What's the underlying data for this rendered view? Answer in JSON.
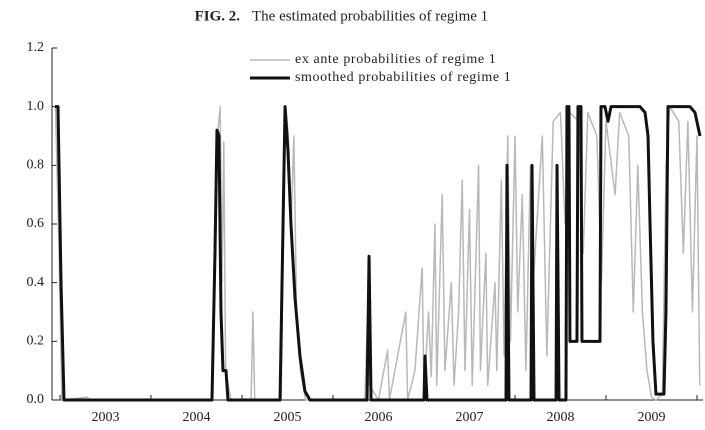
{
  "chart_data": {
    "type": "line",
    "title_label": "FIG. 2.",
    "title": "The estimated probabilities of regime 1",
    "xlim": [
      2002.912,
      2010.066
    ],
    "xticks": [
      {
        "value": 2003.5,
        "label": "2003"
      },
      {
        "value": 2004.5,
        "label": "2004"
      },
      {
        "value": 2005.5,
        "label": "2005"
      },
      {
        "value": 2006.5,
        "label": "2006"
      },
      {
        "value": 2007.5,
        "label": "2007"
      },
      {
        "value": 2008.5,
        "label": "2008"
      },
      {
        "value": 2009.5,
        "label": "2009"
      }
    ],
    "xminor_ticks": [
      2003,
      2004,
      2005,
      2006,
      2007,
      2008,
      2009,
      2010
    ],
    "ylim": [
      0,
      1.2
    ],
    "yticks": [
      {
        "value": 0,
        "label": "0.0"
      },
      {
        "value": 0.2,
        "label": "0.2"
      },
      {
        "value": 0.4,
        "label": "0.4"
      },
      {
        "value": 0.6,
        "label": "0.6"
      },
      {
        "value": 0.8,
        "label": "0.8"
      },
      {
        "value": 1,
        "label": "1.0"
      },
      {
        "value": 1.2,
        "label": "1.2"
      }
    ],
    "grid": false,
    "legend": "top",
    "series": [
      {
        "name": "ex ante probabilities of regime 1",
        "color": "#b8b8b8",
        "width": 1.5,
        "x": [
          2002.95,
          2002.99,
          2003.02,
          2003.3,
          2003.32,
          2004.67,
          2004.7,
          2004.73,
          2004.76,
          2004.78,
          2004.8,
          2004.82,
          2004.85,
          2004.88,
          2005.1,
          2005.12,
          2005.14,
          2005.43,
          2005.46,
          2005.48,
          2005.51,
          2005.54,
          2005.57,
          2005.6,
          2005.64,
          2005.7,
          2006.35,
          2006.38,
          2006.4,
          2006.5,
          2006.6,
          2006.62,
          2006.8,
          2006.82,
          2006.9,
          2006.98,
          2007.0,
          2007.05,
          2007.08,
          2007.12,
          2007.14,
          2007.2,
          2007.23,
          2007.3,
          2007.33,
          2007.38,
          2007.42,
          2007.45,
          2007.5,
          2007.53,
          2007.6,
          2007.62,
          2007.68,
          2007.7,
          2007.78,
          2007.8,
          2007.85,
          2007.88,
          2007.92,
          2007.95,
          2008.0,
          2008.03,
          2008.08,
          2008.12,
          2008.17,
          2008.2,
          2008.3,
          2008.35,
          2008.42,
          2008.5,
          2008.55,
          2008.6,
          2008.7,
          2008.75,
          2008.8,
          2008.9,
          2008.95,
          2009.0,
          2009.1,
          2009.15,
          2009.25,
          2009.3,
          2009.35,
          2009.4,
          2009.45,
          2009.5,
          2009.55,
          2009.62,
          2009.66,
          2009.7,
          2009.8,
          2009.85,
          2009.9,
          2009.95,
          2010.0,
          2010.03
        ],
        "values": [
          1.0,
          0.5,
          0.0,
          0.01,
          0,
          0,
          0.6,
          0.9,
          1.0,
          0.4,
          0.88,
          0.1,
          0.05,
          0,
          0,
          0.3,
          0,
          0,
          0.7,
          1.0,
          0.9,
          0.6,
          0.9,
          0.3,
          0.1,
          0,
          0,
          0.3,
          0.05,
          0,
          0.17,
          0,
          0.3,
          0,
          0.1,
          0.45,
          0.02,
          0.3,
          0.08,
          0.6,
          0.05,
          0.7,
          0.1,
          0.4,
          0.05,
          0.3,
          0.75,
          0.1,
          0.65,
          0.05,
          0.8,
          0.1,
          0.5,
          0.05,
          0.4,
          0.1,
          0.75,
          0.15,
          0.9,
          0.2,
          0.9,
          0.3,
          0.7,
          0.1,
          0.8,
          0.4,
          0.9,
          0.15,
          0.95,
          0.98,
          0.6,
          0.98,
          0.95,
          0.5,
          0.98,
          0.9,
          0.4,
          0.95,
          0.7,
          0.98,
          0.9,
          0.3,
          0.8,
          0.3,
          0.1,
          0.01,
          0.0,
          0.02,
          0.8,
          1.0,
          0.95,
          0.5,
          0.95,
          0.3,
          0.9,
          0.05
        ]
      },
      {
        "name": "smoothed probabilities of regime 1",
        "color": "#111111",
        "width": 3,
        "x": [
          2002.945,
          2002.978,
          2003.011,
          2003.044,
          2004.67,
          2004.703,
          2004.725,
          2004.747,
          2004.769,
          2004.791,
          2004.824,
          2004.846,
          2005.418,
          2005.451,
          2005.473,
          2005.505,
          2005.538,
          2005.582,
          2005.637,
          2005.692,
          2005.747,
          2006.374,
          2006.396,
          2006.418,
          2007.0,
          2007.011,
          2007.033,
          2007.901,
          2007.912,
          2007.934,
          2008.176,
          2008.187,
          2008.209,
          2008.451,
          2008.462,
          2008.484,
          2008.56,
          2008.571,
          2008.593,
          2008.604,
          2008.681,
          2008.692,
          2008.725,
          2008.736,
          2008.934,
          2008.945,
          2008.989,
          2009.022,
          2009.055,
          2009.374,
          2009.429,
          2009.462,
          2009.484,
          2009.516,
          2009.549,
          2009.637,
          2009.659,
          2009.681,
          2009.923,
          2009.978,
          2010.033
        ],
        "values": [
          1.0,
          1.0,
          0.4,
          0.0,
          0.0,
          0.5,
          0.92,
          0.9,
          0.3,
          0.1,
          0.1,
          0.0,
          0.0,
          0.6,
          1.0,
          0.85,
          0.6,
          0.35,
          0.15,
          0.03,
          0.0,
          0.0,
          0.49,
          0.0,
          0.0,
          0.15,
          0.0,
          0.0,
          0.8,
          0.0,
          0.0,
          0.8,
          0.0,
          0.0,
          0.8,
          0.0,
          0.0,
          1.0,
          1.0,
          0.2,
          0.2,
          1.0,
          1.0,
          0.2,
          0.2,
          1.0,
          1.0,
          0.95,
          1.0,
          1.0,
          0.98,
          0.9,
          0.6,
          0.2,
          0.02,
          0.02,
          0.3,
          1.0,
          1.0,
          0.98,
          0.9
        ]
      }
    ]
  }
}
